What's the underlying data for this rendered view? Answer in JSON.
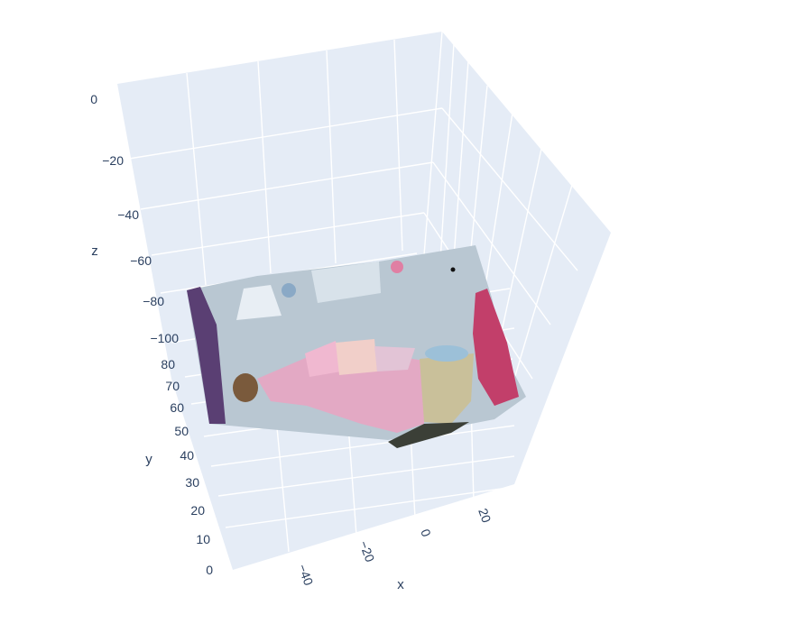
{
  "chart_data": {
    "type": "scatter3d",
    "description_source": "3D point cloud rendered from an RGB-D image of a bedroom",
    "axes": {
      "x": {
        "title": "x",
        "ticks": [
          "−40",
          "−20",
          "0",
          "20"
        ]
      },
      "y": {
        "title": "y",
        "ticks": [
          "0",
          "10",
          "20",
          "30",
          "40",
          "50",
          "60",
          "70",
          "80"
        ]
      },
      "z": {
        "title": "z",
        "ticks": [
          "0",
          "−20",
          "−40",
          "−60",
          "−80",
          "−100"
        ]
      }
    },
    "scene_colors": {
      "background": "#e5ecf6",
      "grid": "#ffffff",
      "text": "#2a3f5f"
    },
    "point_cloud_colors": {
      "wall": "#b9c7d2",
      "wall_light": "#d8e2ea",
      "bedspread": "#e3a9c4",
      "pillow": "#f1cfc9",
      "curtain_left": "#5a3f73",
      "robe_right": "#c23f6a",
      "nightstand": "#c9c09a",
      "floor_shadow": "#3b3f37"
    }
  }
}
